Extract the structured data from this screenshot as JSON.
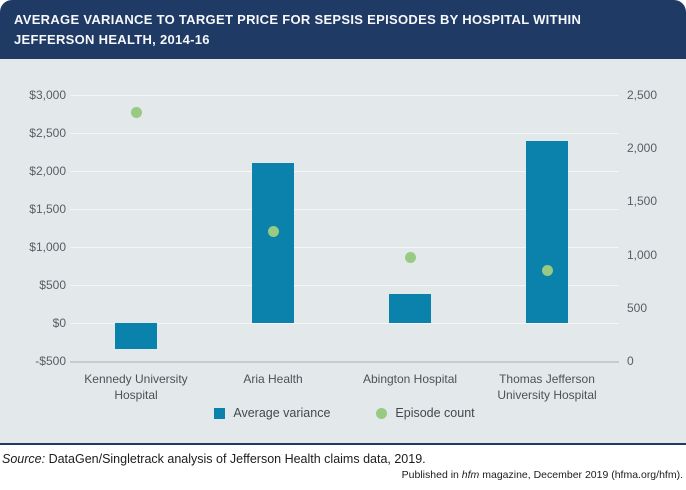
{
  "header": {
    "title": "AVERAGE VARIANCE TO TARGET PRICE FOR SEPSIS EPISODES BY HOSPITAL WITHIN JEFFERSON HEALTH, 2014-16"
  },
  "colors": {
    "navy": "#203a66",
    "teal": "#0b82ab",
    "green": "#98ca81",
    "plot_bg": "#e3e8eb",
    "grid": "#f3f6f7",
    "axis_line": "#c7ccd1"
  },
  "chart_data": {
    "type": "bar",
    "title": "Average variance to target price for sepsis episodes by hospital within Jefferson Health, 2014-16",
    "categories": [
      "Kennedy University Hospital",
      "Aria Health",
      "Abington Hospital",
      "Thomas Jefferson University Hospital"
    ],
    "series": [
      {
        "name": "Average variance",
        "type": "bar",
        "axis": "left",
        "values": [
          -340,
          2100,
          380,
          2400
        ]
      },
      {
        "name": "Episode count",
        "type": "scatter",
        "axis": "right",
        "values": [
          2340,
          1220,
          970,
          855
        ]
      }
    ],
    "left_axis": {
      "ticks": [
        "$3,000",
        "$2,500",
        "$2,000",
        "$1,500",
        "$1,000",
        "$500",
        "$0",
        "-$500"
      ],
      "tick_values": [
        3000,
        2500,
        2000,
        1500,
        1000,
        500,
        0,
        -500
      ],
      "min": -500,
      "max": 3000,
      "step": 500
    },
    "right_axis": {
      "ticks": [
        "2,500",
        "2,000",
        "1,500",
        "1,000",
        "500",
        "0"
      ],
      "tick_values": [
        2500,
        2000,
        1500,
        1000,
        500,
        0
      ],
      "min": 0,
      "max": 2500
    },
    "legend": [
      {
        "label": "Average variance",
        "marker": "square"
      },
      {
        "label": "Episode count",
        "marker": "circle"
      }
    ],
    "grid": true,
    "legend_position": "bottom"
  },
  "footer": {
    "source_prefix": "Source:",
    "source_rest": " DataGen/Singletrack analysis of Jefferson Health claims data, 2019.",
    "published_pre": "Published in ",
    "published_italic": "hfm",
    "published_post": " magazine, December 2019 (hfma.org/hfm)."
  }
}
